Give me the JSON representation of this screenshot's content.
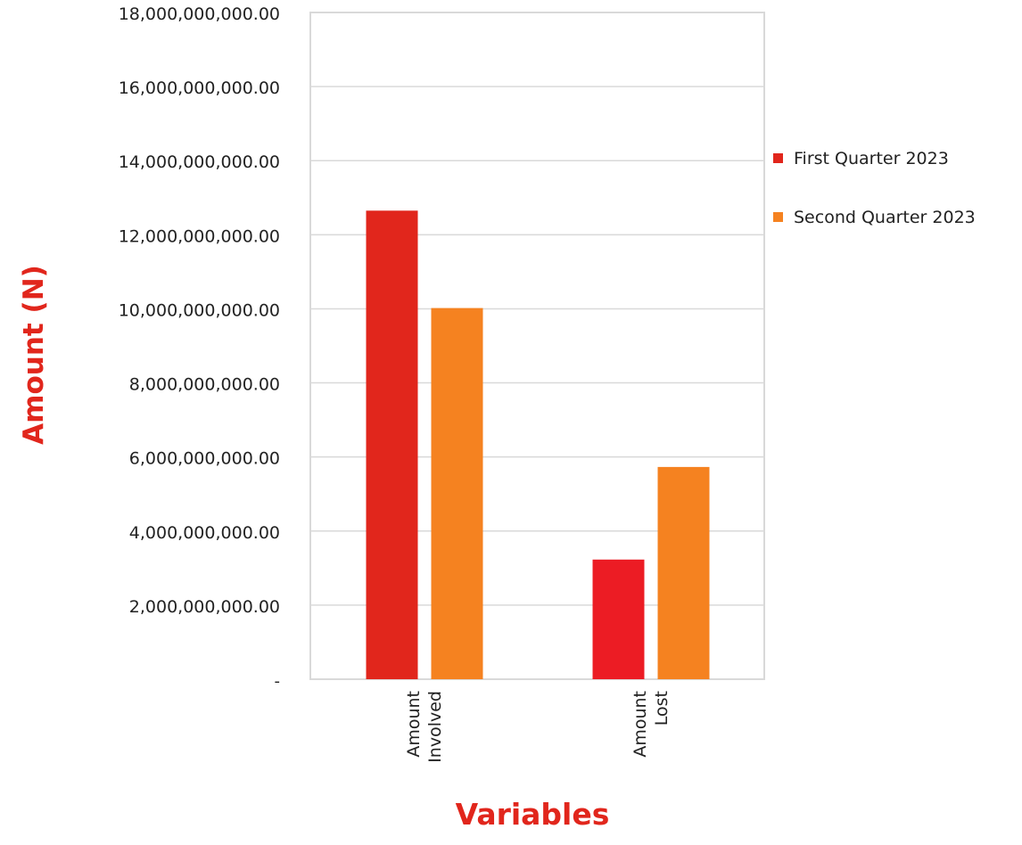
{
  "chart_data": {
    "type": "bar",
    "categories": [
      [
        "Amount",
        "Involved"
      ],
      [
        "Amount",
        "Lost"
      ]
    ],
    "series": [
      {
        "name": "First Quarter 2023",
        "values": [
          12650000000,
          3230000000
        ],
        "colors": [
          "#e1261c",
          "#ec1c24"
        ]
      },
      {
        "name": "Second Quarter 2023",
        "values": [
          10020000000,
          5730000000
        ],
        "colors": [
          "#f58220",
          "#f58220"
        ]
      }
    ],
    "xlabel": "Variables",
    "ylabel": "Amount (N)",
    "ylim": [
      0,
      18000000000
    ],
    "yticks": [
      {
        "value": 0,
        "label": "-"
      },
      {
        "value": 2000000000,
        "label": "2,000,000,000.00"
      },
      {
        "value": 4000000000,
        "label": "4,000,000,000.00"
      },
      {
        "value": 6000000000,
        "label": "6,000,000,000.00"
      },
      {
        "value": 8000000000,
        "label": "8,000,000,000.00"
      },
      {
        "value": 10000000000,
        "label": "10,000,000,000.00"
      },
      {
        "value": 12000000000,
        "label": "12,000,000,000.00"
      },
      {
        "value": 14000000000,
        "label": "14,000,000,000.00"
      },
      {
        "value": 16000000000,
        "label": "16,000,000,000.00"
      },
      {
        "value": 18000000000,
        "label": "18,000,000,000.00"
      }
    ],
    "grid": true,
    "legend_position": "right",
    "label_color": "#e1261c"
  }
}
